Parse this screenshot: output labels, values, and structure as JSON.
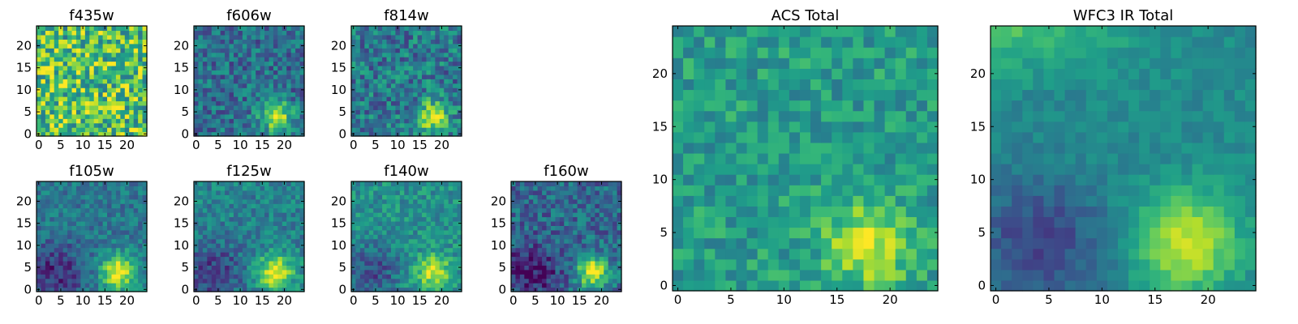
{
  "chart_data": [
    {
      "type": "heatmap",
      "title": "f435w",
      "source": {
        "cx": 11,
        "cy": 11,
        "sigma": 20,
        "amp": 0.1
      },
      "base": 0.62,
      "noise": 0.32,
      "xticks": [
        0,
        5,
        10,
        15,
        20
      ],
      "yticks": [
        0,
        5,
        10,
        15,
        20
      ],
      "xlim": [
        0,
        24
      ],
      "ylim": [
        0,
        24
      ]
    },
    {
      "type": "heatmap",
      "title": "f606w",
      "source": {
        "cx": 18,
        "cy": 4,
        "sigma": 2.4,
        "amp": 0.6
      },
      "base": 0.36,
      "noise": 0.2,
      "xticks": [
        0,
        5,
        10,
        15,
        20
      ],
      "yticks": [
        0,
        5,
        10,
        15,
        20
      ],
      "xlim": [
        0,
        24
      ],
      "ylim": [
        0,
        24
      ]
    },
    {
      "type": "heatmap",
      "title": "f814w",
      "source": {
        "cx": 18,
        "cy": 4,
        "sigma": 2.4,
        "amp": 0.55
      },
      "base": 0.4,
      "noise": 0.22,
      "xticks": [
        0,
        5,
        10,
        15,
        20
      ],
      "yticks": [
        0,
        5,
        10,
        15,
        20
      ],
      "xlim": [
        0,
        24
      ],
      "ylim": [
        0,
        24
      ]
    },
    {
      "type": "heatmap",
      "title": "f105w",
      "source": {
        "cx": 18,
        "cy": 4,
        "sigma": 2.8,
        "amp": 0.58
      },
      "base": 0.4,
      "noise": 0.14,
      "corner_dark": true,
      "xticks": [
        0,
        5,
        10,
        15,
        20
      ],
      "yticks": [
        0,
        5,
        10,
        15,
        20
      ],
      "xlim": [
        0,
        24
      ],
      "ylim": [
        0,
        24
      ]
    },
    {
      "type": "heatmap",
      "title": "f125w",
      "source": {
        "cx": 18,
        "cy": 4,
        "sigma": 2.8,
        "amp": 0.52
      },
      "base": 0.44,
      "noise": 0.15,
      "corner_dark": true,
      "xticks": [
        0,
        5,
        10,
        15,
        20
      ],
      "yticks": [
        0,
        5,
        10,
        15,
        20
      ],
      "xlim": [
        0,
        24
      ],
      "ylim": [
        0,
        24
      ]
    },
    {
      "type": "heatmap",
      "title": "f140w",
      "source": {
        "cx": 18,
        "cy": 4,
        "sigma": 2.6,
        "amp": 0.45
      },
      "base": 0.5,
      "noise": 0.15,
      "corner_dark": true,
      "xticks": [
        0,
        5,
        10,
        15,
        20
      ],
      "yticks": [
        0,
        5,
        10,
        15,
        20
      ],
      "xlim": [
        0,
        24
      ],
      "ylim": [
        0,
        24
      ]
    },
    {
      "type": "heatmap",
      "title": "f160w",
      "source": {
        "cx": 18,
        "cy": 4,
        "sigma": 2.6,
        "amp": 0.62
      },
      "base": 0.34,
      "noise": 0.18,
      "corner_dark": true,
      "xticks": [
        0,
        5,
        10,
        15,
        20
      ],
      "yticks": [
        0,
        5,
        10,
        15,
        20
      ],
      "xlim": [
        0,
        24
      ],
      "ylim": [
        0,
        24
      ]
    },
    {
      "type": "heatmap",
      "title": "ACS Total",
      "source": {
        "cx": 18,
        "cy": 4,
        "sigma": 2.7,
        "amp": 0.4
      },
      "base": 0.55,
      "noise": 0.15,
      "xticks": [
        0,
        5,
        10,
        15,
        20
      ],
      "yticks": [
        0,
        5,
        10,
        15,
        20
      ],
      "xlim": [
        0,
        24
      ],
      "ylim": [
        0,
        24
      ]
    },
    {
      "type": "heatmap",
      "title": "WFC3 IR Total",
      "source": {
        "cx": 18,
        "cy": 4,
        "sigma": 3.3,
        "amp": 0.45
      },
      "base": 0.48,
      "noise": 0.07,
      "corner_dark": true,
      "top_bright": true,
      "xticks": [
        0,
        5,
        10,
        15,
        20
      ],
      "yticks": [
        0,
        5,
        10,
        15,
        20
      ],
      "xlim": [
        0,
        24
      ],
      "ylim": [
        0,
        24
      ]
    }
  ],
  "colormap": {
    "name": "viridis",
    "stops": [
      "#440154",
      "#482878",
      "#3e4989",
      "#31688e",
      "#26828e",
      "#1f9e89",
      "#35b779",
      "#6ece58",
      "#b5de2b",
      "#fde725"
    ]
  }
}
